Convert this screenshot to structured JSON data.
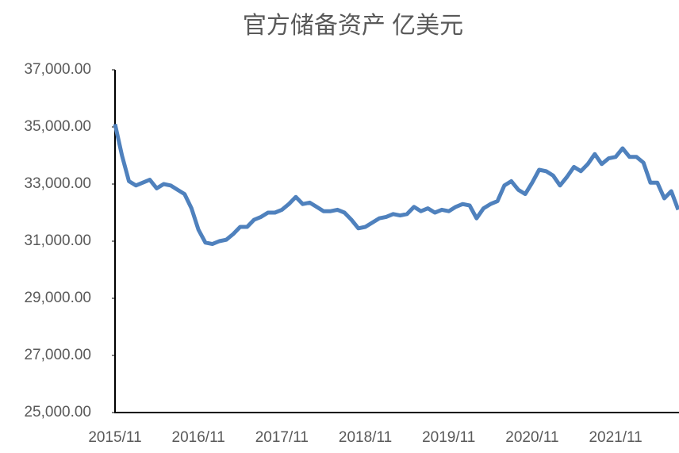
{
  "chart_data": {
    "type": "line",
    "title": "官方储备资产 亿美元",
    "categories": [
      "2015/11",
      null,
      null,
      null,
      null,
      null,
      null,
      null,
      null,
      null,
      null,
      null,
      "2016/11",
      null,
      null,
      null,
      null,
      null,
      null,
      null,
      null,
      null,
      null,
      null,
      "2017/11",
      null,
      null,
      null,
      null,
      null,
      null,
      null,
      null,
      null,
      null,
      null,
      "2018/11",
      null,
      null,
      null,
      null,
      null,
      null,
      null,
      null,
      null,
      null,
      null,
      "2019/11",
      null,
      null,
      null,
      null,
      null,
      null,
      null,
      null,
      null,
      null,
      null,
      "2020/11",
      null,
      null,
      null,
      null,
      null,
      null,
      null,
      null,
      null,
      null,
      null,
      "2021/11",
      null,
      null,
      null,
      null,
      null,
      null,
      null,
      null,
      null
    ],
    "series": [
      {
        "name": "官方储备资产",
        "color": "#4f81bd",
        "values": [
          35100,
          34000,
          33100,
          32950,
          33050,
          33150,
          32850,
          33000,
          32950,
          32800,
          32650,
          32150,
          31400,
          30950,
          30900,
          31000,
          31050,
          31250,
          31500,
          31500,
          31750,
          31850,
          32000,
          32000,
          32100,
          32300,
          32550,
          32300,
          32350,
          32200,
          32050,
          32050,
          32100,
          32000,
          31750,
          31450,
          31500,
          31650,
          31800,
          31850,
          31950,
          31900,
          31950,
          32200,
          32050,
          32150,
          32000,
          32100,
          32050,
          32200,
          32300,
          32250,
          31800,
          32150,
          32300,
          32400,
          32950,
          33100,
          32800,
          32650,
          33050,
          33500,
          33450,
          33300,
          32950,
          33250,
          33600,
          33450,
          33700,
          34050,
          33700,
          33900,
          33950,
          34250,
          33950,
          33950,
          33750,
          33050,
          33050,
          32500,
          32750,
          32100
        ]
      }
    ],
    "ylim": [
      25000,
      37000
    ],
    "yticks": [
      {
        "value": 25000,
        "label": "25,000.00"
      },
      {
        "value": 27000,
        "label": "27,000.00"
      },
      {
        "value": 29000,
        "label": "29,000.00"
      },
      {
        "value": 31000,
        "label": "31,000.00"
      },
      {
        "value": 33000,
        "label": "33,000.00"
      },
      {
        "value": 35000,
        "label": "35,000.00"
      },
      {
        "value": 37000,
        "label": "37,000.00"
      }
    ],
    "grid": false
  }
}
